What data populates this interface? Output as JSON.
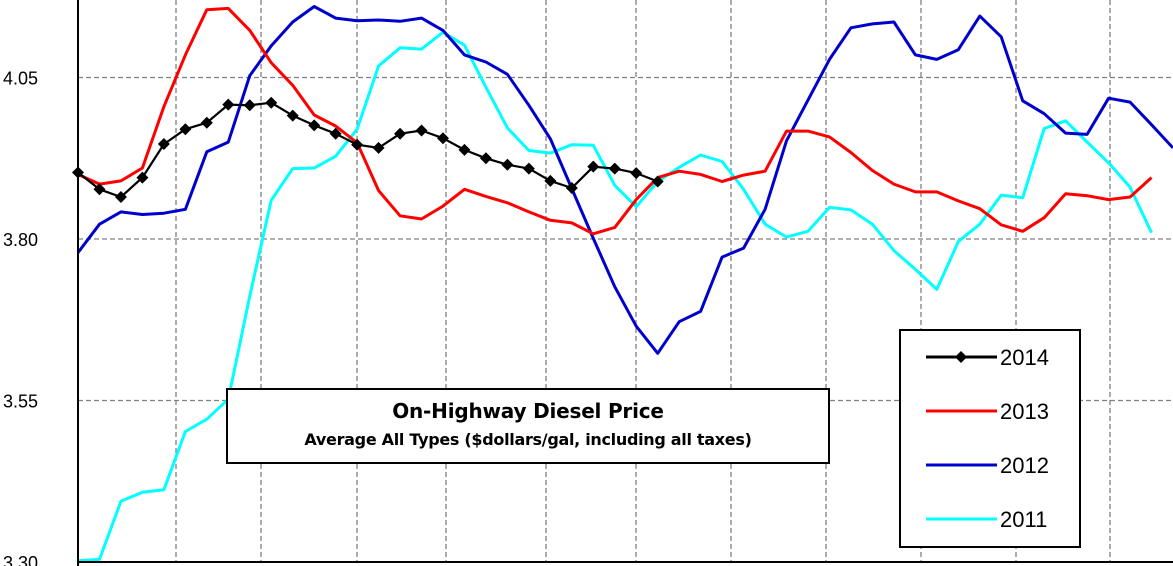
{
  "chart_data": {
    "type": "line",
    "title": "On-Highway Diesel Price",
    "subtitle": "Average All Types ($dollars/gal, including all taxes)",
    "ylim": [
      3.3,
      4.17
    ],
    "yticks": [
      "3.30",
      "3.55",
      "3.80",
      "4.05"
    ],
    "ytick_values": [
      3.3,
      3.55,
      3.8,
      4.05
    ],
    "grid": true,
    "legend_position": "bottom-right",
    "x_weeks": 52,
    "series": [
      {
        "name": "2014",
        "color": "#000000",
        "marker": "diamond",
        "values": [
          3.903,
          3.877,
          3.865,
          3.895,
          3.947,
          3.97,
          3.98,
          4.008,
          4.007,
          4.011,
          3.991,
          3.976,
          3.963,
          3.946,
          3.941,
          3.963,
          3.968,
          3.956,
          3.938,
          3.925,
          3.915,
          3.909,
          3.89,
          3.879,
          3.912,
          3.909,
          3.902,
          3.889
        ]
      },
      {
        "name": "2013",
        "color": "#ff0000",
        "marker": "none",
        "values": [
          3.9,
          3.885,
          3.89,
          3.91,
          4.005,
          4.085,
          4.155,
          4.157,
          4.123,
          4.073,
          4.038,
          3.992,
          3.975,
          3.949,
          3.875,
          3.836,
          3.831,
          3.851,
          3.877,
          3.866,
          3.856,
          3.842,
          3.829,
          3.825,
          3.808,
          3.818,
          3.861,
          3.895,
          3.905,
          3.9,
          3.889,
          3.899,
          3.905,
          3.967,
          3.967,
          3.958,
          3.934,
          3.906,
          3.885,
          3.873,
          3.873,
          3.859,
          3.847,
          3.822,
          3.812,
          3.833,
          3.87,
          3.867,
          3.861,
          3.865,
          3.895
        ]
      },
      {
        "name": "2012",
        "color": "#0000cc",
        "marker": "none",
        "values": [
          3.779,
          3.823,
          3.842,
          3.838,
          3.84,
          3.846,
          3.935,
          3.95,
          4.053,
          4.099,
          4.136,
          4.16,
          4.142,
          4.138,
          4.139,
          4.137,
          4.142,
          4.123,
          4.085,
          4.074,
          4.055,
          4.007,
          3.955,
          3.878,
          3.801,
          3.726,
          3.665,
          3.623,
          3.672,
          3.688,
          3.772,
          3.786,
          3.846,
          3.952,
          4.015,
          4.078,
          4.127,
          4.133,
          4.136,
          4.085,
          4.078,
          4.093,
          4.145,
          4.113,
          4.014,
          3.994,
          3.964,
          3.962,
          4.018,
          4.012,
          3.977,
          3.941
        ]
      },
      {
        "name": "2011",
        "color": "#00ffff",
        "marker": "none",
        "values": [
          3.302,
          3.304,
          3.394,
          3.408,
          3.412,
          3.502,
          3.521,
          3.552,
          3.712,
          3.86,
          3.909,
          3.91,
          3.928,
          3.97,
          4.068,
          4.096,
          4.094,
          4.12,
          4.1,
          4.035,
          3.972,
          3.937,
          3.933,
          3.946,
          3.945,
          3.883,
          3.85,
          3.889,
          3.911,
          3.93,
          3.92,
          3.877,
          3.823,
          3.803,
          3.812,
          3.849,
          3.845,
          3.823,
          3.782,
          3.753,
          3.722,
          3.796,
          3.823,
          3.868,
          3.864,
          3.971,
          3.983,
          3.95,
          3.918,
          3.88,
          3.81
        ]
      }
    ]
  }
}
